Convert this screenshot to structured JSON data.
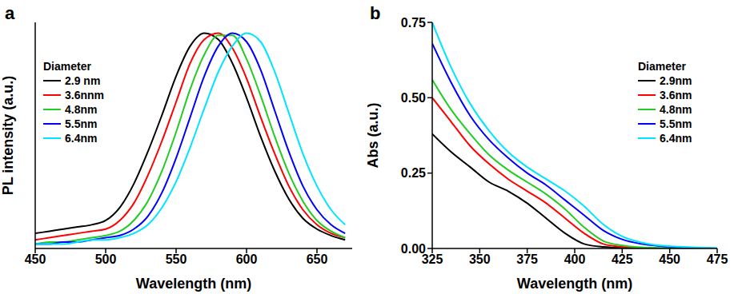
{
  "chart_data": [
    {
      "type": "line",
      "panel_label": "a",
      "x_label": "Wavelength (nm)",
      "y_label": "PL intensity (a.u.)",
      "legend_title": "Diameter",
      "legend": "upper left",
      "tick_labels": "x",
      "xlim": [
        450,
        675
      ],
      "xticks": [
        450,
        500,
        550,
        600,
        650
      ],
      "ylim": [
        0,
        1.05
      ],
      "x": [
        450,
        460,
        470,
        480,
        490,
        500,
        510,
        520,
        530,
        540,
        550,
        560,
        570,
        580,
        590,
        600,
        610,
        620,
        630,
        640,
        650,
        660,
        670
      ],
      "series": [
        {
          "name": "2.9 nm",
          "color": "#000000",
          "values": [
            0.07,
            0.08,
            0.09,
            0.1,
            0.11,
            0.13,
            0.19,
            0.3,
            0.45,
            0.62,
            0.8,
            0.94,
            1.0,
            0.97,
            0.86,
            0.7,
            0.52,
            0.36,
            0.23,
            0.14,
            0.09,
            0.06,
            0.04
          ]
        },
        {
          "name": "3.6nnm",
          "color": "#ff0000",
          "values": [
            0.04,
            0.05,
            0.06,
            0.07,
            0.08,
            0.09,
            0.13,
            0.21,
            0.34,
            0.5,
            0.68,
            0.86,
            0.97,
            1.0,
            0.93,
            0.79,
            0.61,
            0.44,
            0.29,
            0.18,
            0.11,
            0.07,
            0.05
          ]
        },
        {
          "name": "4.8nm",
          "color": "#22cc22",
          "values": [
            0.02,
            0.03,
            0.03,
            0.04,
            0.05,
            0.06,
            0.08,
            0.13,
            0.22,
            0.36,
            0.54,
            0.74,
            0.9,
            0.99,
            0.99,
            0.88,
            0.71,
            0.52,
            0.35,
            0.22,
            0.13,
            0.08,
            0.05
          ]
        },
        {
          "name": "5.5nm",
          "color": "#0000ff",
          "values": [
            0.02,
            0.02,
            0.03,
            0.03,
            0.04,
            0.05,
            0.06,
            0.09,
            0.15,
            0.26,
            0.42,
            0.61,
            0.8,
            0.94,
            1.0,
            0.96,
            0.83,
            0.64,
            0.45,
            0.29,
            0.18,
            0.11,
            0.07
          ]
        },
        {
          "name": "6.4nm",
          "color": "#00e5ff",
          "values": [
            0.02,
            0.02,
            0.02,
            0.03,
            0.04,
            0.04,
            0.05,
            0.07,
            0.11,
            0.19,
            0.31,
            0.47,
            0.65,
            0.82,
            0.94,
            1.0,
            0.96,
            0.82,
            0.63,
            0.44,
            0.29,
            0.18,
            0.11
          ]
        }
      ]
    },
    {
      "type": "line",
      "panel_label": "b",
      "x_label": "Wavelength (nm)",
      "y_label": "Abs (a.u.)",
      "legend_title": "Diameter",
      "legend": "upper right",
      "xlim": [
        325,
        475
      ],
      "xticks": [
        325,
        350,
        375,
        400,
        425,
        450,
        475
      ],
      "ylim": [
        0,
        0.75
      ],
      "yticks": [
        {
          "value": 0,
          "label": "0.00"
        },
        {
          "value": 0.25,
          "label": "0.25"
        },
        {
          "value": 0.5,
          "label": "0.50"
        },
        {
          "value": 0.75,
          "label": "0.75"
        }
      ],
      "x": [
        325,
        335,
        345,
        355,
        365,
        375,
        385,
        395,
        405,
        415,
        425,
        435,
        445,
        455,
        465,
        475
      ],
      "series": [
        {
          "name": "2.9nm",
          "color": "#000000",
          "values": [
            0.38,
            0.32,
            0.27,
            0.22,
            0.19,
            0.15,
            0.1,
            0.05,
            0.015,
            0.005,
            0.002,
            0,
            0,
            0,
            0,
            0
          ]
        },
        {
          "name": "3.6nm",
          "color": "#ff0000",
          "values": [
            0.5,
            0.42,
            0.34,
            0.28,
            0.23,
            0.19,
            0.15,
            0.1,
            0.05,
            0.015,
            0.005,
            0.002,
            0,
            0,
            0,
            0
          ]
        },
        {
          "name": "4.8nm",
          "color": "#22cc22",
          "values": [
            0.56,
            0.46,
            0.38,
            0.31,
            0.26,
            0.22,
            0.18,
            0.13,
            0.07,
            0.025,
            0.01,
            0.004,
            0.002,
            0,
            0,
            0
          ]
        },
        {
          "name": "5.5nm",
          "color": "#0000ff",
          "values": [
            0.68,
            0.55,
            0.44,
            0.36,
            0.3,
            0.25,
            0.21,
            0.16,
            0.11,
            0.06,
            0.03,
            0.015,
            0.008,
            0.004,
            0.002,
            0
          ]
        },
        {
          "name": "6.4nm",
          "color": "#00e5ff",
          "values": [
            0.75,
            0.6,
            0.48,
            0.39,
            0.32,
            0.27,
            0.23,
            0.19,
            0.14,
            0.08,
            0.04,
            0.02,
            0.01,
            0.006,
            0.003,
            0.001
          ]
        }
      ]
    }
  ]
}
